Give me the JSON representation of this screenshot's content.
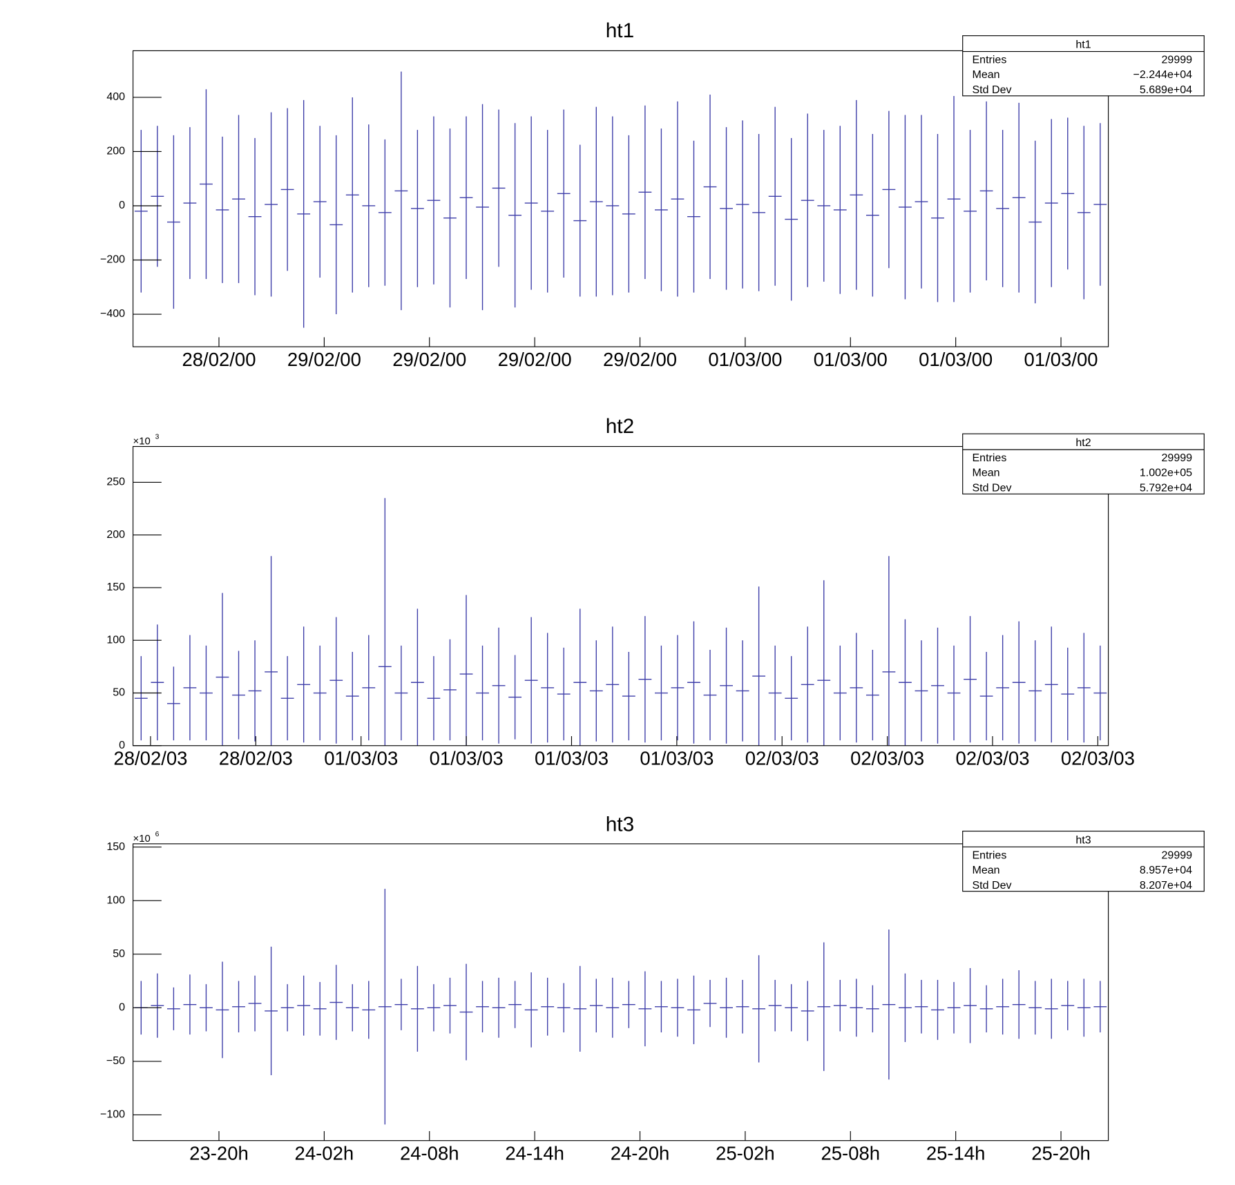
{
  "chart_data": [
    {
      "type": "errorbar",
      "title": "ht1",
      "color": "#3c3ca8",
      "xlim": [
        0,
        55.6
      ],
      "xticks": [
        {
          "value": 4.9,
          "label": "28/02/00"
        },
        {
          "value": 10.9,
          "label": "29/02/00"
        },
        {
          "value": 16.9,
          "label": "29/02/00"
        },
        {
          "value": 22.9,
          "label": "29/02/00"
        },
        {
          "value": 28.9,
          "label": "29/02/00"
        },
        {
          "value": 34.9,
          "label": "01/03/00"
        },
        {
          "value": 40.9,
          "label": "01/03/00"
        },
        {
          "value": 46.9,
          "label": "01/03/00"
        },
        {
          "value": 52.9,
          "label": "01/03/00"
        }
      ],
      "ylim": [
        -520,
        572
      ],
      "yticks": [
        {
          "value": -400,
          "label": "−400"
        },
        {
          "value": -200,
          "label": "−200"
        },
        0,
        200,
        400
      ],
      "values": [
        -20,
        35,
        -60,
        10,
        80,
        -15,
        25,
        -40,
        5,
        60,
        -30,
        15,
        -70,
        40,
        0,
        -25,
        55,
        -10,
        20,
        -45,
        30,
        -5,
        65,
        -35,
        10,
        -20,
        45,
        -55,
        15,
        0,
        -30,
        50,
        -15,
        25,
        -40,
        70,
        -10,
        5,
        -25,
        35,
        -50,
        20,
        0,
        -15,
        40,
        -35,
        60,
        -5,
        15,
        -45,
        25,
        -20,
        55,
        -10,
        30,
        -60,
        10,
        45,
        -25,
        5
      ],
      "errors": [
        300,
        260,
        320,
        280,
        350,
        270,
        310,
        290,
        340,
        300,
        420,
        280,
        330,
        360,
        300,
        270,
        440,
        290,
        310,
        330,
        300,
        380,
        290,
        340,
        320,
        300,
        310,
        280,
        350,
        330,
        290,
        320,
        300,
        360,
        280,
        340,
        300,
        310,
        290,
        330,
        300,
        320,
        280,
        310,
        350,
        300,
        290,
        340,
        320,
        310,
        380,
        300,
        330,
        290,
        350,
        300,
        310,
        280,
        320,
        300
      ],
      "stats": {
        "title": "ht1",
        "rows": [
          [
            "Entries",
            29999
          ],
          [
            "Mean",
            "−2.244e+04"
          ],
          [
            "Std Dev",
            "5.689e+04"
          ]
        ]
      }
    },
    {
      "type": "errorbar",
      "title": "ht2",
      "color": "#3c3ca8",
      "y_multiplier": "×10",
      "y_exponent": "3",
      "xlim": [
        0,
        55.6
      ],
      "xticks": [
        {
          "value": 1,
          "label": "28/02/03"
        },
        {
          "value": 7,
          "label": "28/02/03"
        },
        {
          "value": 13,
          "label": "01/03/03"
        },
        {
          "value": 19,
          "label": "01/03/03"
        },
        {
          "value": 25,
          "label": "01/03/03"
        },
        {
          "value": 31,
          "label": "01/03/03"
        },
        {
          "value": 37,
          "label": "02/03/03"
        },
        {
          "value": 43,
          "label": "02/03/03"
        },
        {
          "value": 49,
          "label": "02/03/03"
        },
        {
          "value": 55,
          "label": "02/03/03"
        }
      ],
      "ylim": [
        0,
        284
      ],
      "yticks": [
        0,
        50,
        100,
        150,
        200,
        250
      ],
      "values": [
        45,
        60,
        40,
        55,
        50,
        65,
        48,
        52,
        70,
        45,
        58,
        50,
        62,
        47,
        55,
        75,
        50,
        60,
        45,
        53,
        68,
        50,
        57,
        46,
        62,
        55,
        49,
        60,
        52,
        58,
        47,
        63,
        50,
        55,
        60,
        48,
        57,
        52,
        66,
        50,
        45,
        58,
        62,
        50,
        55,
        48,
        70,
        60,
        52,
        57,
        50,
        63,
        47,
        55,
        60,
        52,
        58,
        49,
        55,
        50
      ],
      "errors": [
        40,
        55,
        35,
        50,
        45,
        80,
        42,
        48,
        110,
        40,
        55,
        45,
        60,
        42,
        50,
        160,
        45,
        70,
        40,
        48,
        75,
        45,
        55,
        40,
        60,
        52,
        44,
        70,
        48,
        55,
        42,
        60,
        45,
        50,
        58,
        43,
        55,
        48,
        85,
        45,
        40,
        55,
        95,
        45,
        52,
        43,
        110,
        60,
        48,
        55,
        45,
        60,
        42,
        50,
        58,
        48,
        55,
        44,
        52,
        45
      ],
      "stats": {
        "title": "ht2",
        "rows": [
          [
            "Entries",
            29999
          ],
          [
            "Mean",
            "1.002e+05"
          ],
          [
            "Std Dev",
            "5.792e+04"
          ]
        ]
      }
    },
    {
      "type": "errorbar",
      "title": "ht3",
      "color": "#3c3ca8",
      "y_multiplier": "×10",
      "y_exponent": "6",
      "xlim": [
        0,
        55.6
      ],
      "xticks": [
        {
          "value": 4.9,
          "label": "23-20h"
        },
        {
          "value": 10.9,
          "label": "24-02h"
        },
        {
          "value": 16.9,
          "label": "24-08h"
        },
        {
          "value": 22.9,
          "label": "24-14h"
        },
        {
          "value": 28.9,
          "label": "24-20h"
        },
        {
          "value": 34.9,
          "label": "25-02h"
        },
        {
          "value": 40.9,
          "label": "25-08h"
        },
        {
          "value": 46.9,
          "label": "25-14h"
        },
        {
          "value": 52.9,
          "label": "25-20h"
        }
      ],
      "ylim": [
        -124,
        153
      ],
      "yticks": [
        {
          "value": -100,
          "label": "−100"
        },
        {
          "value": -50,
          "label": "−50"
        },
        0,
        50,
        100,
        150
      ],
      "values": [
        0,
        2,
        -1,
        3,
        0,
        -2,
        1,
        4,
        -3,
        0,
        2,
        -1,
        5,
        0,
        -2,
        1,
        3,
        -1,
        0,
        2,
        -4,
        1,
        0,
        3,
        -2,
        1,
        0,
        -1,
        2,
        0,
        3,
        -1,
        1,
        0,
        -2,
        4,
        0,
        1,
        -1,
        2,
        0,
        -3,
        1,
        2,
        0,
        -1,
        3,
        0,
        1,
        -2,
        0,
        2,
        -1,
        1,
        3,
        0,
        -1,
        2,
        0,
        1
      ],
      "errors": [
        25,
        30,
        20,
        28,
        22,
        45,
        24,
        26,
        60,
        22,
        28,
        25,
        35,
        22,
        27,
        110,
        24,
        40,
        22,
        26,
        45,
        24,
        28,
        22,
        35,
        27,
        23,
        40,
        25,
        28,
        22,
        35,
        24,
        27,
        32,
        22,
        28,
        25,
        50,
        24,
        22,
        28,
        60,
        24,
        27,
        22,
        70,
        32,
        25,
        28,
        24,
        35,
        22,
        26,
        32,
        25,
        28,
        23,
        27,
        24
      ],
      "stats": {
        "title": "ht3",
        "rows": [
          [
            "Entries",
            29999
          ],
          [
            "Mean",
            "8.957e+04"
          ],
          [
            "Std Dev",
            "8.207e+04"
          ]
        ]
      }
    }
  ]
}
